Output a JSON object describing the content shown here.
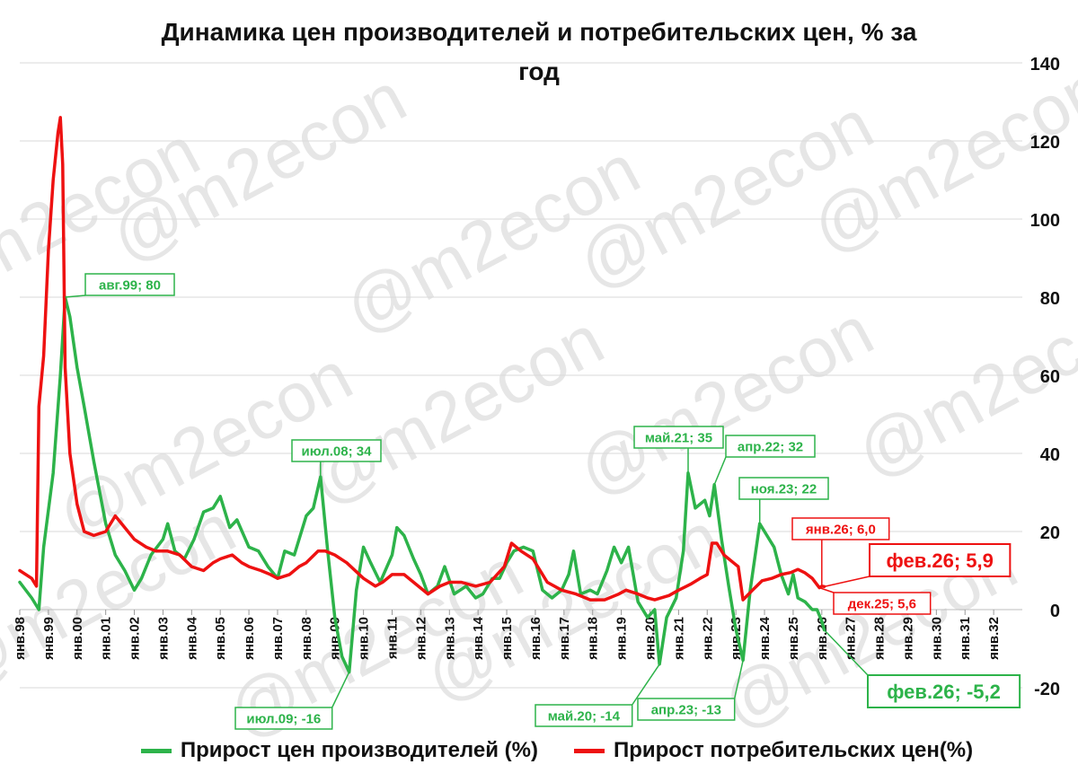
{
  "chart_data": {
    "type": "line",
    "title_line1": "Динамика цен производителей и потребительских цен, % за",
    "title_line2": "год",
    "watermark": "@m2econ",
    "xlabel": "",
    "ylabel": "",
    "ylim": [
      -20,
      140
    ],
    "xlim": [
      "янв.98",
      "дек.32"
    ],
    "y_ticks": [
      "-20",
      "0",
      "20",
      "40",
      "60",
      "80",
      "100",
      "120",
      "140"
    ],
    "x_ticks": [
      "янв.98",
      "янв.99",
      "янв.00",
      "янв.01",
      "янв.02",
      "янв.03",
      "янв.04",
      "янв.05",
      "янв.06",
      "янв.07",
      "янв.08",
      "янв.09",
      "янв.10",
      "янв.11",
      "янв.12",
      "янв.13",
      "янв.14",
      "янв.15",
      "янв.16",
      "янв.17",
      "янв.18",
      "янв.19",
      "янв.20",
      "янв.21",
      "янв.22",
      "янв.23",
      "янв.24",
      "янв.25",
      "янв.26",
      "янв.27",
      "янв.28",
      "янв.29",
      "янв.30",
      "янв.31",
      "янв.32"
    ],
    "grid": true,
    "legend_position": "bottom",
    "series": [
      {
        "name": "Прирост цен производителей (%)",
        "color": "#2db34a",
        "points": [
          [
            "1998-01",
            7
          ],
          [
            "1998-06",
            3
          ],
          [
            "1998-09",
            0
          ],
          [
            "1998-11",
            16
          ],
          [
            "1999-03",
            35
          ],
          [
            "1999-06",
            60
          ],
          [
            "1999-08",
            80
          ],
          [
            "1999-10",
            75
          ],
          [
            "2000-01",
            62
          ],
          [
            "2000-04",
            52
          ],
          [
            "2000-08",
            38
          ],
          [
            "2001-01",
            22
          ],
          [
            "2001-05",
            14
          ],
          [
            "2001-09",
            10
          ],
          [
            "2002-01",
            5
          ],
          [
            "2002-04",
            8
          ],
          [
            "2002-08",
            14
          ],
          [
            "2003-01",
            18
          ],
          [
            "2003-03",
            22
          ],
          [
            "2003-06",
            15
          ],
          [
            "2003-10",
            13
          ],
          [
            "2004-02",
            18
          ],
          [
            "2004-06",
            25
          ],
          [
            "2004-10",
            26
          ],
          [
            "2005-01",
            29
          ],
          [
            "2005-05",
            21
          ],
          [
            "2005-08",
            23
          ],
          [
            "2006-01",
            16
          ],
          [
            "2006-05",
            15
          ],
          [
            "2006-09",
            11
          ],
          [
            "2007-01",
            8
          ],
          [
            "2007-04",
            15
          ],
          [
            "2007-08",
            14
          ],
          [
            "2008-01",
            24
          ],
          [
            "2008-04",
            26
          ],
          [
            "2008-07",
            34
          ],
          [
            "2008-10",
            15
          ],
          [
            "2009-01",
            -2
          ],
          [
            "2009-04",
            -12
          ],
          [
            "2009-07",
            -16
          ],
          [
            "2009-10",
            5
          ],
          [
            "2010-01",
            16
          ],
          [
            "2010-04",
            12
          ],
          [
            "2010-08",
            7
          ],
          [
            "2011-01",
            14
          ],
          [
            "2011-03",
            21
          ],
          [
            "2011-06",
            19
          ],
          [
            "2011-10",
            13
          ],
          [
            "2012-01",
            9
          ],
          [
            "2012-04",
            4
          ],
          [
            "2012-08",
            6
          ],
          [
            "2012-11",
            11
          ],
          [
            "2013-03",
            4
          ],
          [
            "2013-08",
            6
          ],
          [
            "2013-12",
            3
          ],
          [
            "2014-03",
            4
          ],
          [
            "2014-07",
            8
          ],
          [
            "2014-10",
            8
          ],
          [
            "2015-01",
            12
          ],
          [
            "2015-04",
            15
          ],
          [
            "2015-08",
            16
          ],
          [
            "2015-12",
            15
          ],
          [
            "2016-04",
            5
          ],
          [
            "2016-08",
            3
          ],
          [
            "2016-12",
            5
          ],
          [
            "2017-03",
            9
          ],
          [
            "2017-05",
            15
          ],
          [
            "2017-08",
            4
          ],
          [
            "2017-12",
            5
          ],
          [
            "2018-03",
            4
          ],
          [
            "2018-07",
            10
          ],
          [
            "2018-10",
            16
          ],
          [
            "2019-01",
            12
          ],
          [
            "2019-04",
            16
          ],
          [
            "2019-08",
            2
          ],
          [
            "2019-12",
            -2
          ],
          [
            "2020-03",
            0
          ],
          [
            "2020-05",
            -14
          ],
          [
            "2020-08",
            -2
          ],
          [
            "2020-12",
            3
          ],
          [
            "2021-03",
            15
          ],
          [
            "2021-05",
            35
          ],
          [
            "2021-08",
            26
          ],
          [
            "2021-12",
            28
          ],
          [
            "2022-02",
            24
          ],
          [
            "2022-04",
            32
          ],
          [
            "2022-07",
            18
          ],
          [
            "2022-10",
            6
          ],
          [
            "2023-01",
            -5
          ],
          [
            "2023-04",
            -13
          ],
          [
            "2023-07",
            5
          ],
          [
            "2023-11",
            22
          ],
          [
            "2024-02",
            19
          ],
          [
            "2024-05",
            16
          ],
          [
            "2024-08",
            9
          ],
          [
            "2024-11",
            4
          ],
          [
            "2025-01",
            9
          ],
          [
            "2025-03",
            3
          ],
          [
            "2025-06",
            2
          ],
          [
            "2025-09",
            0
          ],
          [
            "2025-11",
            0
          ],
          [
            "2026-01",
            -3
          ],
          [
            "2026-02",
            -5.2
          ]
        ]
      },
      {
        "name": "Прирост потребительских цен(%)",
        "color": "#ee1111",
        "points": [
          [
            "1998-01",
            10
          ],
          [
            "1998-06",
            8
          ],
          [
            "1998-08",
            6
          ],
          [
            "1998-09",
            52
          ],
          [
            "1998-11",
            65
          ],
          [
            "1999-01",
            92
          ],
          [
            "1999-03",
            110
          ],
          [
            "1999-05",
            122
          ],
          [
            "1999-06",
            126
          ],
          [
            "1999-07",
            114
          ],
          [
            "1999-08",
            62
          ],
          [
            "1999-10",
            40
          ],
          [
            "2000-01",
            27
          ],
          [
            "2000-04",
            20
          ],
          [
            "2000-08",
            19
          ],
          [
            "2001-01",
            20
          ],
          [
            "2001-05",
            24
          ],
          [
            "2001-09",
            21
          ],
          [
            "2002-01",
            18
          ],
          [
            "2002-06",
            16
          ],
          [
            "2002-10",
            15
          ],
          [
            "2003-03",
            15
          ],
          [
            "2003-08",
            14
          ],
          [
            "2004-01",
            11
          ],
          [
            "2004-06",
            10
          ],
          [
            "2004-10",
            12
          ],
          [
            "2005-01",
            13
          ],
          [
            "2005-06",
            14
          ],
          [
            "2005-10",
            12
          ],
          [
            "2006-01",
            11
          ],
          [
            "2006-06",
            10
          ],
          [
            "2006-10",
            9
          ],
          [
            "2007-01",
            8
          ],
          [
            "2007-06",
            9
          ],
          [
            "2007-10",
            11
          ],
          [
            "2008-01",
            12
          ],
          [
            "2008-06",
            15
          ],
          [
            "2008-09",
            15
          ],
          [
            "2009-01",
            14
          ],
          [
            "2009-06",
            12
          ],
          [
            "2010-01",
            8
          ],
          [
            "2010-06",
            6
          ],
          [
            "2010-09",
            7
          ],
          [
            "2011-01",
            9
          ],
          [
            "2011-06",
            9
          ],
          [
            "2011-12",
            6
          ],
          [
            "2012-04",
            4
          ],
          [
            "2012-09",
            6
          ],
          [
            "2013-01",
            7
          ],
          [
            "2013-06",
            7
          ],
          [
            "2013-12",
            6
          ],
          [
            "2014-06",
            7
          ],
          [
            "2014-12",
            11
          ],
          [
            "2015-03",
            17
          ],
          [
            "2015-07",
            15
          ],
          [
            "2015-12",
            13
          ],
          [
            "2016-06",
            7
          ],
          [
            "2016-12",
            5
          ],
          [
            "2017-06",
            4
          ],
          [
            "2017-12",
            2.5
          ],
          [
            "2018-06",
            2.5
          ],
          [
            "2018-12",
            4
          ],
          [
            "2019-03",
            5
          ],
          [
            "2019-08",
            4
          ],
          [
            "2019-12",
            3
          ],
          [
            "2020-03",
            2.5
          ],
          [
            "2020-09",
            3.6
          ],
          [
            "2021-01",
            5
          ],
          [
            "2021-06",
            6.5
          ],
          [
            "2021-10",
            8
          ],
          [
            "2022-01",
            9
          ],
          [
            "2022-03",
            17
          ],
          [
            "2022-05",
            17
          ],
          [
            "2022-08",
            14
          ],
          [
            "2022-12",
            12
          ],
          [
            "2023-02",
            11
          ],
          [
            "2023-04",
            2.5
          ],
          [
            "2023-08",
            5
          ],
          [
            "2023-12",
            7.4
          ],
          [
            "2024-04",
            8
          ],
          [
            "2024-08",
            9
          ],
          [
            "2024-12",
            9.5
          ],
          [
            "2025-03",
            10.3
          ],
          [
            "2025-06",
            9.4
          ],
          [
            "2025-09",
            8
          ],
          [
            "2025-12",
            5.6
          ],
          [
            "2026-01",
            6.0
          ],
          [
            "2026-02",
            5.9
          ]
        ]
      }
    ],
    "annotations": [
      {
        "label": "авг.99; 80",
        "date": "1999-08",
        "value": 80,
        "color": "#2db34a",
        "size": "small"
      },
      {
        "label": "июл.08; 34",
        "date": "2008-07",
        "value": 34,
        "color": "#2db34a",
        "size": "small"
      },
      {
        "label": "июл.09; -16",
        "date": "2009-07",
        "value": -16,
        "color": "#2db34a",
        "size": "small"
      },
      {
        "label": "май.20; -14",
        "date": "2020-05",
        "value": -14,
        "color": "#2db34a",
        "size": "small"
      },
      {
        "label": "май.21; 35",
        "date": "2021-05",
        "value": 35,
        "color": "#2db34a",
        "size": "small"
      },
      {
        "label": "апр.22; 32",
        "date": "2022-04",
        "value": 32,
        "color": "#2db34a",
        "size": "small"
      },
      {
        "label": "апр.23; -13",
        "date": "2023-04",
        "value": -13,
        "color": "#2db34a",
        "size": "small"
      },
      {
        "label": "ноя.23; 22",
        "date": "2023-11",
        "value": 22,
        "color": "#2db34a",
        "size": "small"
      },
      {
        "label": "фев.26; -5,2",
        "date": "2026-02",
        "value": -5.2,
        "color": "#2db34a",
        "size": "large"
      },
      {
        "label": "янв.26; 6,0",
        "date": "2026-01",
        "value": 6.0,
        "color": "#ee1111",
        "size": "small"
      },
      {
        "label": "фев.26; 5,9",
        "date": "2026-02",
        "value": 5.9,
        "color": "#ee1111",
        "size": "large"
      },
      {
        "label": "дек.25; 5,6",
        "date": "2025-12",
        "value": 5.6,
        "color": "#ee1111",
        "size": "small"
      }
    ]
  }
}
